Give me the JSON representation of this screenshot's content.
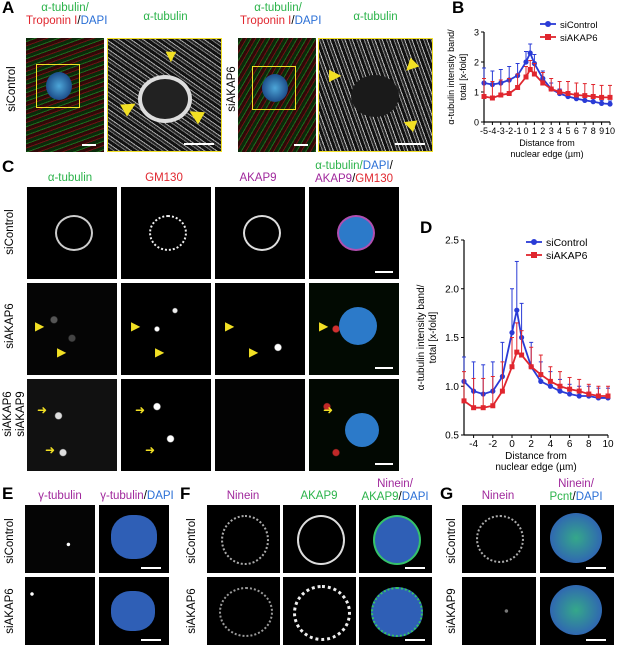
{
  "panel_letters": {
    "A": "A",
    "B": "B",
    "C": "C",
    "D": "D",
    "E": "E",
    "F": "F",
    "G": "G"
  },
  "A": {
    "hdr1_part1": "α-tubulin/",
    "hdr1_part2": "Troponin I",
    "hdr1_part3": "/",
    "hdr1_part4": "DAPI",
    "hdr2": "α-tubulin",
    "row1": "siControl",
    "row2": "siAKAP6"
  },
  "C": {
    "h1": "α-tubulin",
    "h2": "GM130",
    "h3": "AKAP9",
    "h4a": "α-tubulin/",
    "h4b": "DAPI",
    "h4c": "/",
    "h4d": "AKAP9",
    "h4e": "/",
    "h4f": "GM130",
    "row1": "siControl",
    "row2": "siAKAP6",
    "row3a": "siAKAP6",
    "row3b": "siAKAP9"
  },
  "E": {
    "h1": "γ-tubulin",
    "h2a": "γ-tubulin",
    "h2b": "/",
    "h2c": "DAPI",
    "row1": "siControl",
    "row2": "siAKAP6"
  },
  "F": {
    "h1": "Ninein",
    "h2": "AKAP9",
    "h3a": "Ninein/",
    "h3b": "AKAP9",
    "h3c": "/",
    "h3d": "DAPI",
    "row1": "siControl",
    "row2": "siAKAP6"
  },
  "G": {
    "h1": "Ninein",
    "h2a": "Ninein/",
    "h2b": "Pcnt",
    "h2c": "/",
    "h2d": "DAPI",
    "row1": "siControl",
    "row2": "siAKAP9"
  },
  "colors": {
    "siControl": "#2a3bd6",
    "siAKAP6": "#e0262e",
    "green": "#2bb34a",
    "magenta": "#a0289c"
  },
  "chart_data": [
    {
      "id": "B",
      "type": "line",
      "ylabel": "α-tubulin intensity band/ total [x-fold]",
      "xlabel": "Distance from nuclear edge (µm)",
      "xlim": [
        -5,
        10
      ],
      "ylim": [
        0,
        3
      ],
      "xticks": [
        -5,
        -4,
        -3,
        -2,
        -1,
        0,
        1,
        2,
        3,
        4,
        5,
        6,
        7,
        8,
        9,
        10
      ],
      "yticks": [
        0,
        1,
        2,
        3
      ],
      "legend": "top-right",
      "x": [
        -5,
        -4,
        -3,
        -2,
        -1,
        0,
        0.5,
        1,
        2,
        3,
        4,
        5,
        6,
        7,
        8,
        9,
        10
      ],
      "series": [
        {
          "name": "siControl",
          "values": [
            1.3,
            1.25,
            1.3,
            1.4,
            1.55,
            2.0,
            2.3,
            1.95,
            1.45,
            1.1,
            0.95,
            0.85,
            0.78,
            0.72,
            0.68,
            0.62,
            0.6
          ],
          "err": [
            0.5,
            0.45,
            0.45,
            0.45,
            0.4,
            0.35,
            0.3,
            0.3,
            0.25,
            0.2,
            0.15,
            0.12,
            0.1,
            0.1,
            0.1,
            0.1,
            0.1
          ]
        },
        {
          "name": "siAKAP6",
          "values": [
            0.85,
            0.8,
            0.9,
            0.95,
            1.15,
            1.5,
            1.75,
            1.6,
            1.3,
            1.1,
            1.0,
            0.95,
            0.9,
            0.88,
            0.85,
            0.82,
            0.82
          ],
          "err": [
            0.6,
            0.55,
            0.5,
            0.5,
            0.45,
            0.35,
            0.3,
            0.35,
            0.35,
            0.35,
            0.35,
            0.4,
            0.4,
            0.4,
            0.4,
            0.4,
            0.4
          ]
        }
      ]
    },
    {
      "id": "D",
      "type": "line",
      "ylabel": "α-tubulin intensity band/ total [x-fold]",
      "xlabel": "Distance from nuclear edge (µm)",
      "xlim": [
        -5,
        10
      ],
      "ylim": [
        0.5,
        2.5
      ],
      "xticks": [
        -4,
        -2,
        0,
        2,
        4,
        6,
        8,
        10
      ],
      "yticks": [
        0.5,
        1.0,
        1.5,
        2.0,
        2.5
      ],
      "legend": "top-right",
      "x": [
        -5,
        -4,
        -3,
        -2,
        -1,
        0,
        0.5,
        1,
        2,
        3,
        4,
        5,
        6,
        7,
        8,
        9,
        10
      ],
      "series": [
        {
          "name": "siControl",
          "values": [
            1.05,
            0.95,
            0.92,
            0.95,
            1.1,
            1.55,
            1.78,
            1.5,
            1.2,
            1.05,
            1.0,
            0.95,
            0.92,
            0.9,
            0.9,
            0.88,
            0.88
          ],
          "err": [
            0.25,
            0.3,
            0.3,
            0.3,
            0.35,
            0.45,
            0.5,
            0.35,
            0.25,
            0.2,
            0.15,
            0.12,
            0.1,
            0.1,
            0.1,
            0.1,
            0.1
          ]
        },
        {
          "name": "siAKAP6",
          "values": [
            0.85,
            0.78,
            0.78,
            0.8,
            0.95,
            1.2,
            1.35,
            1.32,
            1.2,
            1.12,
            1.05,
            1.0,
            0.97,
            0.95,
            0.92,
            0.9,
            0.9
          ],
          "err": [
            0.3,
            0.3,
            0.3,
            0.3,
            0.3,
            0.3,
            0.3,
            0.25,
            0.2,
            0.2,
            0.15,
            0.15,
            0.12,
            0.12,
            0.1,
            0.1,
            0.1
          ]
        }
      ]
    }
  ]
}
